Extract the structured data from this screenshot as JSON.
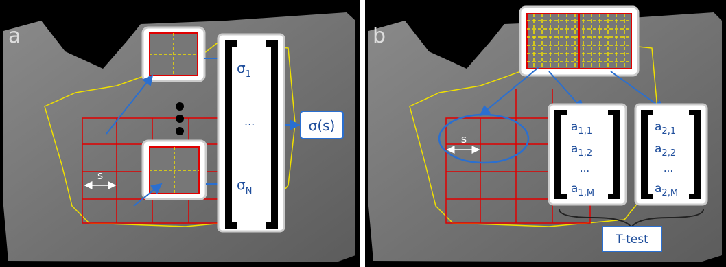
{
  "panel_a": {
    "label": "a",
    "spacing_label": "s",
    "sigma_first": {
      "base": "σ",
      "sub": "1"
    },
    "ellipsis": "...",
    "sigma_last": {
      "base": "σ",
      "sub": "N"
    },
    "result": "σ(s)"
  },
  "panel_b": {
    "label": "b",
    "spacing_label": "s",
    "vectors": [
      {
        "first": {
          "base": "a",
          "sub": "1,1"
        },
        "second": {
          "base": "a",
          "sub": "1,2"
        },
        "ellipsis": "...",
        "last": {
          "base": "a",
          "sub": "1,M"
        }
      },
      {
        "first": {
          "base": "a",
          "sub": "2,1"
        },
        "second": {
          "base": "a",
          "sub": "2,2"
        },
        "ellipsis": "...",
        "last": {
          "base": "a",
          "sub": "2,M"
        }
      }
    ],
    "test_label": "T-test"
  }
}
